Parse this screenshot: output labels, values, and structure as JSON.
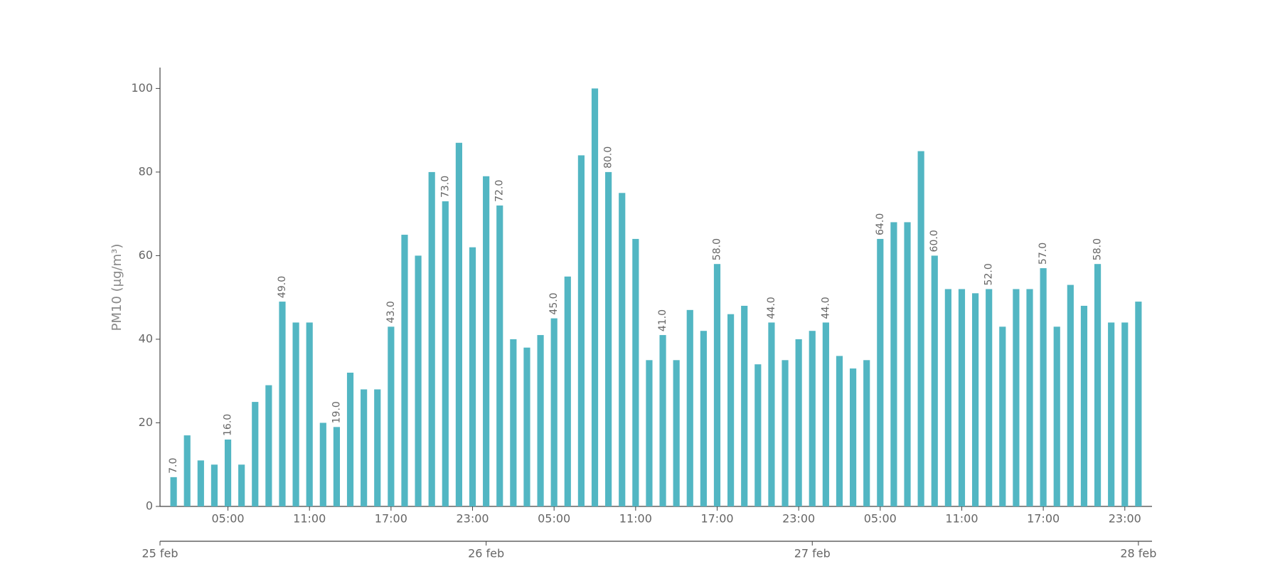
{
  "chart_data": {
    "type": "bar",
    "ylabel": "PM10 (μg/m³)",
    "color": "#52b6c3",
    "x": [
      1,
      2,
      3,
      4,
      5,
      6,
      7,
      8,
      9,
      10,
      11,
      12,
      13,
      14,
      15,
      16,
      17,
      18,
      19,
      20,
      21,
      22,
      23,
      24,
      25,
      26,
      27,
      28,
      29,
      30,
      31,
      32,
      33,
      34,
      35,
      36,
      37,
      38,
      39,
      40,
      41,
      42,
      43,
      44,
      45,
      46,
      47,
      48,
      49,
      50,
      51,
      52,
      53,
      54,
      55,
      56,
      57,
      58,
      59,
      60,
      61,
      62,
      63,
      64,
      65,
      66,
      67,
      68,
      69,
      70,
      71,
      72
    ],
    "values": [
      7,
      17,
      11,
      10,
      16,
      10,
      25,
      29,
      49,
      44,
      44,
      20,
      19,
      32,
      28,
      28,
      43,
      65,
      60,
      80,
      73,
      87,
      62,
      79,
      72,
      40,
      38,
      41,
      45,
      55,
      84,
      100,
      80,
      75,
      64,
      35,
      41,
      35,
      47,
      42,
      58,
      46,
      48,
      34,
      44,
      35,
      40,
      42,
      44,
      36,
      33,
      35,
      64,
      68,
      68,
      85,
      60,
      52,
      52,
      51,
      52,
      43,
      52,
      52,
      57,
      43,
      53,
      48,
      58,
      44,
      44,
      49
    ],
    "value_labels": [
      "7.0",
      null,
      null,
      null,
      "16.0",
      null,
      null,
      null,
      "49.0",
      null,
      null,
      null,
      "19.0",
      null,
      null,
      null,
      "43.0",
      null,
      null,
      null,
      "73.0",
      null,
      null,
      null,
      "72.0",
      null,
      null,
      null,
      "45.0",
      null,
      null,
      null,
      "80.0",
      null,
      null,
      null,
      "41.0",
      null,
      null,
      null,
      "58.0",
      null,
      null,
      null,
      "44.0",
      null,
      null,
      null,
      "44.0",
      null,
      null,
      null,
      "64.0",
      null,
      null,
      null,
      "60.0",
      null,
      null,
      null,
      "52.0",
      null,
      null,
      null,
      "57.0",
      null,
      null,
      null,
      "58.0",
      null,
      null,
      null
    ],
    "xlim": [
      0,
      73
    ],
    "xticks": [
      {
        "value": 5,
        "label": "05:00"
      },
      {
        "value": 11,
        "label": "11:00"
      },
      {
        "value": 17,
        "label": "17:00"
      },
      {
        "value": 23,
        "label": "23:00"
      },
      {
        "value": 29,
        "label": "05:00"
      },
      {
        "value": 35,
        "label": "11:00"
      },
      {
        "value": 41,
        "label": "17:00"
      },
      {
        "value": 47,
        "label": "23:00"
      },
      {
        "value": 53,
        "label": "05:00"
      },
      {
        "value": 59,
        "label": "11:00"
      },
      {
        "value": 65,
        "label": "17:00"
      },
      {
        "value": 71,
        "label": "23:00"
      }
    ],
    "x2ticks": [
      {
        "value": 0,
        "label": "25 feb"
      },
      {
        "value": 24,
        "label": "26 feb"
      },
      {
        "value": 48,
        "label": "27 feb"
      },
      {
        "value": 72,
        "label": "28 feb"
      }
    ],
    "ylim": [
      0,
      105
    ],
    "yticks": [
      0,
      20,
      40,
      60,
      80,
      100
    ]
  }
}
